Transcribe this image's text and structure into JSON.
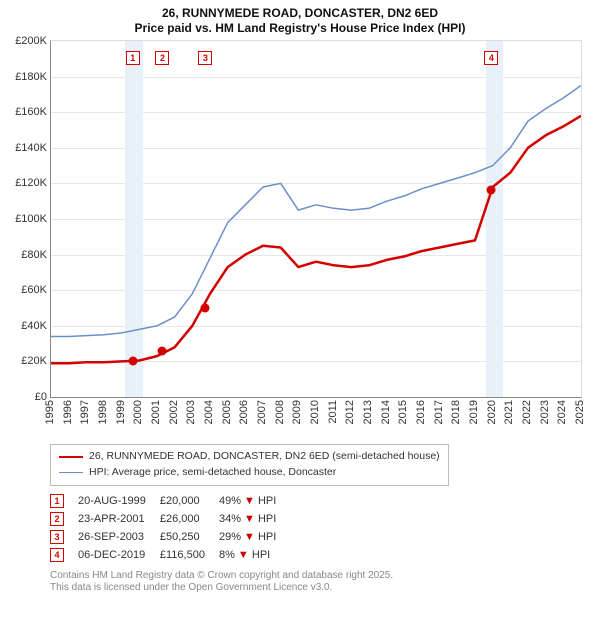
{
  "title": {
    "line1": "26, RUNNYMEDE ROAD, DONCASTER, DN2 6ED",
    "line2": "Price paid vs. HM Land Registry's House Price Index (HPI)"
  },
  "chart": {
    "type": "line",
    "background_color": "#ffffff",
    "grid_color": "#e6e6e6",
    "x": {
      "min": 1995,
      "max": 2025,
      "tick_step": 1
    },
    "y": {
      "min": 0,
      "max": 200000,
      "tick_step": 20000,
      "prefix": "£",
      "tick_suffix": "K",
      "tick_divisor": 1000
    },
    "shaded_bands": [
      {
        "from": 1999.2,
        "to": 2000.2,
        "color": "#e8f0fa"
      },
      {
        "from": 2019.6,
        "to": 2020.6,
        "color": "#e8f0fa"
      }
    ],
    "series": [
      {
        "id": "hpi",
        "label": "HPI: Average price, semi-detached house, Doncaster",
        "color": "#6b8fc9",
        "line_width": 1.5,
        "data": [
          [
            1995,
            34000
          ],
          [
            1996,
            34000
          ],
          [
            1997,
            34500
          ],
          [
            1998,
            35000
          ],
          [
            1999,
            36000
          ],
          [
            2000,
            38000
          ],
          [
            2001,
            40000
          ],
          [
            2002,
            45000
          ],
          [
            2003,
            58000
          ],
          [
            2004,
            78000
          ],
          [
            2005,
            98000
          ],
          [
            2006,
            108000
          ],
          [
            2007,
            118000
          ],
          [
            2008,
            120000
          ],
          [
            2009,
            105000
          ],
          [
            2010,
            108000
          ],
          [
            2011,
            106000
          ],
          [
            2012,
            105000
          ],
          [
            2013,
            106000
          ],
          [
            2014,
            110000
          ],
          [
            2015,
            113000
          ],
          [
            2016,
            117000
          ],
          [
            2017,
            120000
          ],
          [
            2018,
            123000
          ],
          [
            2019,
            126000
          ],
          [
            2020,
            130000
          ],
          [
            2021,
            140000
          ],
          [
            2022,
            155000
          ],
          [
            2023,
            162000
          ],
          [
            2024,
            168000
          ],
          [
            2025,
            175000
          ]
        ]
      },
      {
        "id": "price_paid",
        "label": "26, RUNNYMEDE ROAD, DONCASTER, DN2 6ED (semi-detached house)",
        "color": "#d40000",
        "line_width": 2.5,
        "data": [
          [
            1995,
            19000
          ],
          [
            1996,
            19000
          ],
          [
            1997,
            19500
          ],
          [
            1998,
            19500
          ],
          [
            1999,
            20000
          ],
          [
            2000,
            20500
          ],
          [
            2001,
            23000
          ],
          [
            2002,
            28000
          ],
          [
            2003,
            40000
          ],
          [
            2004,
            58000
          ],
          [
            2005,
            73000
          ],
          [
            2006,
            80000
          ],
          [
            2007,
            85000
          ],
          [
            2008,
            84000
          ],
          [
            2009,
            73000
          ],
          [
            2010,
            76000
          ],
          [
            2011,
            74000
          ],
          [
            2012,
            73000
          ],
          [
            2013,
            74000
          ],
          [
            2014,
            77000
          ],
          [
            2015,
            79000
          ],
          [
            2016,
            82000
          ],
          [
            2017,
            84000
          ],
          [
            2018,
            86000
          ],
          [
            2019,
            88000
          ],
          [
            2020,
            118000
          ],
          [
            2021,
            126000
          ],
          [
            2022,
            140000
          ],
          [
            2023,
            147000
          ],
          [
            2024,
            152000
          ],
          [
            2025,
            158000
          ]
        ]
      }
    ],
    "markers": [
      {
        "n": "1",
        "x": 1999.63
      },
      {
        "n": "2",
        "x": 2001.31
      },
      {
        "n": "3",
        "x": 2003.74
      },
      {
        "n": "4",
        "x": 2019.93
      }
    ],
    "sale_points": [
      {
        "x": 1999.63,
        "y": 20000
      },
      {
        "x": 2001.31,
        "y": 26000
      },
      {
        "x": 2003.74,
        "y": 50250
      },
      {
        "x": 2019.93,
        "y": 116500
      }
    ]
  },
  "sales": [
    {
      "n": "1",
      "date": "20-AUG-1999",
      "price": "£20,000",
      "delta": "49%",
      "direction": "down",
      "vs": "HPI"
    },
    {
      "n": "2",
      "date": "23-APR-2001",
      "price": "£26,000",
      "delta": "34%",
      "direction": "down",
      "vs": "HPI"
    },
    {
      "n": "3",
      "date": "26-SEP-2003",
      "price": "£50,250",
      "delta": "29%",
      "direction": "down",
      "vs": "HPI"
    },
    {
      "n": "4",
      "date": "06-DEC-2019",
      "price": "£116,500",
      "delta": "8%",
      "direction": "down",
      "vs": "HPI"
    }
  ],
  "footer": {
    "line1": "Contains HM Land Registry data © Crown copyright and database right 2025.",
    "line2": "This data is licensed under the Open Government Licence v3.0."
  }
}
